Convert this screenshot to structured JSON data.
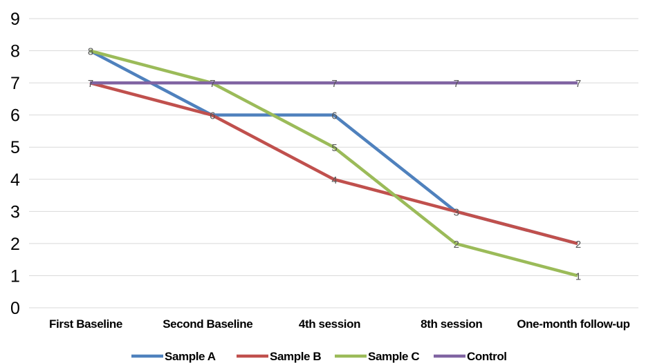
{
  "chart_data": {
    "type": "line",
    "categories": [
      "First Baseline",
      "Second Baseline",
      "4th session",
      "8th session",
      "One-month follow-up"
    ],
    "series": [
      {
        "name": "Sample A",
        "values": [
          8,
          6,
          6,
          3,
          2
        ],
        "color": "#4f81bd"
      },
      {
        "name": "Sample B",
        "values": [
          7,
          6,
          4,
          3,
          2
        ],
        "color": "#c0504d"
      },
      {
        "name": "Sample C",
        "values": [
          8,
          7,
          5,
          2,
          1
        ],
        "color": "#9bbb59"
      },
      {
        "name": "Control",
        "values": [
          7,
          7,
          7,
          7,
          7
        ],
        "color": "#8064a2"
      }
    ],
    "data_labels": [
      "8",
      "7",
      "7",
      "7",
      "7",
      "6",
      "6",
      "5",
      "4",
      "3",
      "2",
      "2",
      "1"
    ],
    "ylim": [
      0,
      9
    ],
    "yticks": [
      "0",
      "1",
      "2",
      "3",
      "4",
      "5",
      "6",
      "7",
      "8",
      "9"
    ],
    "grid": true,
    "legend_position": "bottom",
    "title": "",
    "xlabel": "",
    "ylabel": ""
  }
}
